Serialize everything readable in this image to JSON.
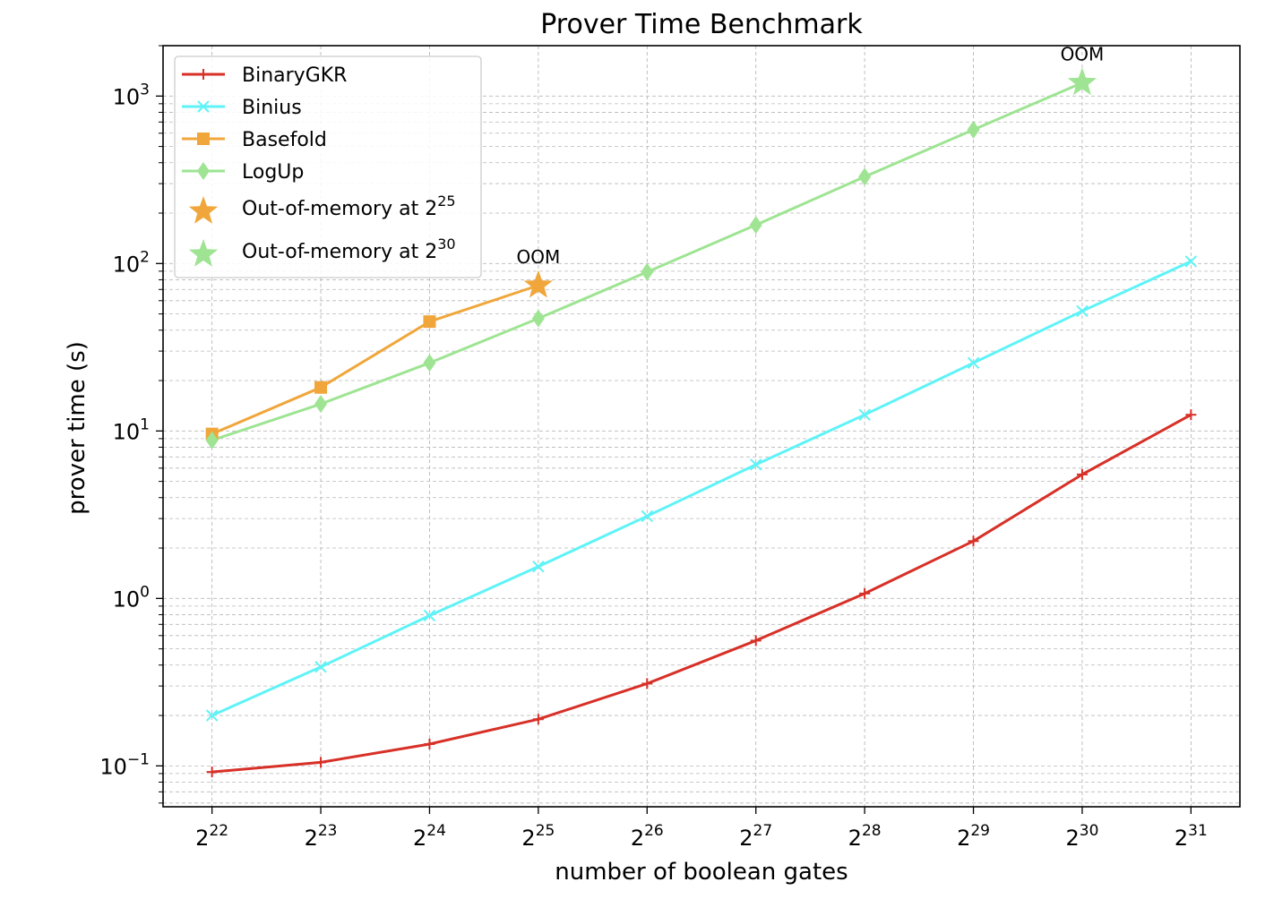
{
  "chart_data": {
    "type": "line",
    "title": "Prover Time Benchmark",
    "xlabel": "number of boolean gates",
    "ylabel": "prover time (s)",
    "x_scale": "log2",
    "y_scale": "log10",
    "x_ticks": [
      {
        "exp": 22,
        "base": "2",
        "sup": "22"
      },
      {
        "exp": 23,
        "base": "2",
        "sup": "23"
      },
      {
        "exp": 24,
        "base": "2",
        "sup": "24"
      },
      {
        "exp": 25,
        "base": "2",
        "sup": "25"
      },
      {
        "exp": 26,
        "base": "2",
        "sup": "26"
      },
      {
        "exp": 27,
        "base": "2",
        "sup": "27"
      },
      {
        "exp": 28,
        "base": "2",
        "sup": "28"
      },
      {
        "exp": 29,
        "base": "2",
        "sup": "29"
      },
      {
        "exp": 30,
        "base": "2",
        "sup": "30"
      },
      {
        "exp": 31,
        "base": "2",
        "sup": "31"
      }
    ],
    "y_ticks": [
      {
        "exp": -1,
        "base": "10",
        "sup": "−1"
      },
      {
        "exp": 0,
        "base": "10",
        "sup": "0"
      },
      {
        "exp": 1,
        "base": "10",
        "sup": "1"
      },
      {
        "exp": 2,
        "base": "10",
        "sup": "2"
      },
      {
        "exp": 3,
        "base": "10",
        "sup": "3"
      }
    ],
    "xlim_log2": [
      21.55,
      31.45
    ],
    "ylim": [
      0.057,
      2000
    ],
    "grid": true,
    "legend_position": "top-left",
    "series": [
      {
        "name": "BinaryGKR",
        "color": "#d73027",
        "marker": "plus",
        "x_log2": [
          22,
          23,
          24,
          25,
          26,
          27,
          28,
          29,
          30,
          31
        ],
        "y": [
          0.092,
          0.105,
          0.135,
          0.19,
          0.31,
          0.56,
          1.07,
          2.2,
          5.5,
          12.5
        ]
      },
      {
        "name": "Binius",
        "color": "#5ef3f7",
        "marker": "x",
        "x_log2": [
          22,
          23,
          24,
          25,
          26,
          27,
          28,
          29,
          30,
          31
        ],
        "y": [
          0.2,
          0.39,
          0.79,
          1.55,
          3.1,
          6.3,
          12.5,
          25.5,
          52,
          103
        ]
      },
      {
        "name": "Basefold",
        "color": "#f0a63a",
        "marker": "square",
        "x_log2": [
          22,
          23,
          24
        ],
        "y": [
          9.6,
          18.2,
          45
        ]
      },
      {
        "name": "LogUp",
        "color": "#9ee493",
        "marker": "diamond",
        "x_log2": [
          22,
          23,
          24,
          25,
          26,
          27,
          28,
          29
        ],
        "y": [
          8.8,
          14.5,
          25.5,
          47,
          89,
          170,
          330,
          630
        ]
      }
    ],
    "oom_markers": [
      {
        "legend_text": "Out-of-memory at 2",
        "legend_sup": "25",
        "label": "OOM",
        "color": "#f0a63a",
        "x_log2": 25,
        "y": 74,
        "connect_from_series": "Basefold"
      },
      {
        "legend_text": "Out-of-memory at 2",
        "legend_sup": "30",
        "label": "OOM",
        "color": "#9ee493",
        "x_log2": 30,
        "y": 1200,
        "connect_from_series": "LogUp"
      }
    ]
  }
}
